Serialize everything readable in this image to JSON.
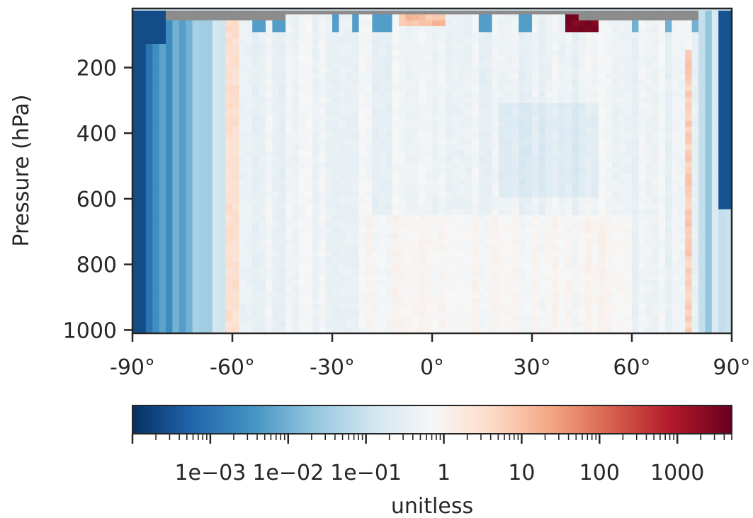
{
  "chart_data": {
    "type": "heatmap",
    "title": "",
    "xlabel": "",
    "ylabel": "Pressure (hPa)",
    "x_range": [
      -90,
      90
    ],
    "y_range": [
      0,
      1000
    ],
    "y_inverted": true,
    "x_ticks": [
      "-90°",
      "-60°",
      "-30°",
      "0°",
      "30°",
      "60°",
      "90°"
    ],
    "x_tick_values": [
      -90,
      -60,
      -30,
      0,
      30,
      60,
      90
    ],
    "y_ticks": [
      "200",
      "400",
      "600",
      "800",
      "1000"
    ],
    "y_tick_values": [
      200,
      400,
      600,
      800,
      1000
    ],
    "colormap": "RdBu_r",
    "color_scale": "log",
    "colorbar": {
      "label": "unitless",
      "range": [
        0.0001,
        5000
      ],
      "ticks": [
        "1e−03",
        "1e−02",
        "1e−01",
        "1",
        "10",
        "100",
        "1000"
      ],
      "tick_values": [
        0.001,
        0.01,
        0.1,
        1,
        10,
        100,
        1000
      ]
    },
    "missing_color": "#8c8c8c",
    "grid": false,
    "description_note": "Ratio field: strongly below 1 (deep blue) poleward of ~60°S at all levels and above ~600 hPa north of ~85°N; near 1 (white/light blue) across most of the domain; values above 1 (reds) near ~45°N in upper levels and in narrow bands near 60°S and 75–85°N."
  },
  "colors": {
    "axis": "#262626",
    "deep_blue": "#053061",
    "white": "#f7f7f7",
    "deep_red": "#67001f",
    "missing": "#8c8c8c"
  }
}
